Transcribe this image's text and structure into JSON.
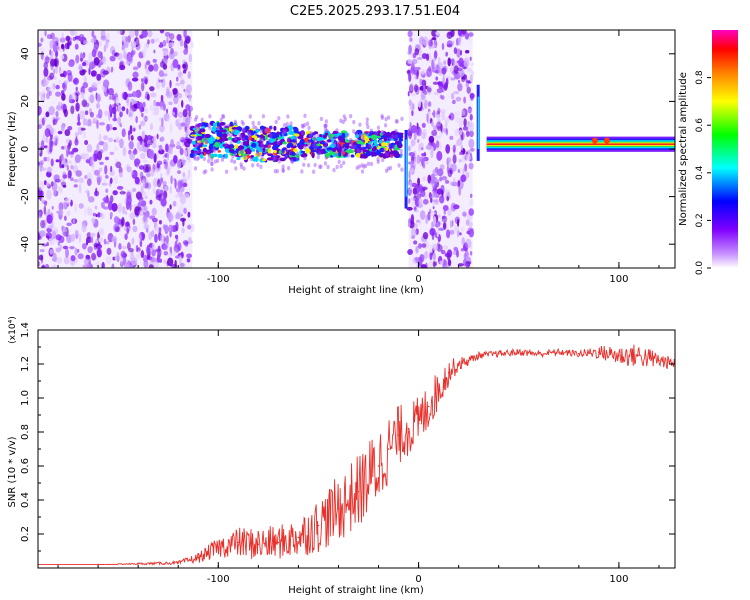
{
  "title": "C2E5.2025.293.17.51.E04",
  "chart_data": [
    {
      "type": "heatmap",
      "xlabel": "Height of straight line (km)",
      "ylabel": "Frequency (Hz)",
      "xlim": [
        -190,
        128
      ],
      "ylim": [
        -50,
        50
      ],
      "xticks": [
        -100,
        0,
        100
      ],
      "yticks": [
        -40,
        -20,
        0,
        20,
        40
      ],
      "xtick_labels": [
        "-100",
        "0",
        "100"
      ],
      "ytick_labels": [
        "-40",
        "-20",
        "0",
        "20",
        "40"
      ],
      "colorbar": {
        "label": "Normalized spectral amplitude",
        "range": [
          0.0,
          1.0
        ],
        "ticks": [
          0.0,
          0.2,
          0.4,
          0.6,
          0.8
        ],
        "tick_labels": [
          "0.0",
          "0.2",
          "0.4",
          "0.6",
          "0.8"
        ],
        "colors": [
          "#ffffff",
          "#a020f0",
          "#0000ff",
          "#00ffff",
          "#00ff00",
          "#ffff00",
          "#ff8000",
          "#ff0000",
          "#ff00ff"
        ]
      },
      "regions": [
        {
          "name": "noise",
          "x": [
            -190,
            -113
          ],
          "level": "low"
        },
        {
          "name": "carrier-noisy",
          "x": [
            -113,
            -8
          ],
          "frequency_center": 2,
          "level": "medium-high"
        },
        {
          "name": "noise",
          "x": [
            -5,
            27
          ],
          "level": "low"
        },
        {
          "name": "carrier-clean",
          "x": [
            34,
            128
          ],
          "frequency_center": 2,
          "level": "max"
        }
      ]
    },
    {
      "type": "line",
      "xlabel": "Height of straight line (km)",
      "ylabel": "SNR (10 * v/v)",
      "y_multiplier": "(x10⁴)",
      "xlim": [
        -190,
        128
      ],
      "ylim": [
        0,
        1.4
      ],
      "xticks": [
        -100,
        0,
        100
      ],
      "yticks": [
        0.2,
        0.4,
        0.6,
        0.8,
        1.0,
        1.2,
        1.4
      ],
      "xtick_labels": [
        "-100",
        "0",
        "100"
      ],
      "ytick_labels": [
        "0.2",
        "0.4",
        "0.6",
        "0.8",
        "1.0",
        "1.2",
        "1.4"
      ],
      "color": "#e8302b",
      "series": [
        {
          "name": "SNR",
          "x": [
            -190,
            -160,
            -140,
            -120,
            -110,
            -100,
            -90,
            -80,
            -70,
            -60,
            -50,
            -40,
            -30,
            -20,
            -15,
            -10,
            -5,
            0,
            5,
            10,
            15,
            20,
            25,
            30,
            40,
            50,
            60,
            70,
            80,
            90,
            100,
            110,
            120,
            128
          ],
          "y": [
            0.02,
            0.02,
            0.025,
            0.03,
            0.06,
            0.12,
            0.15,
            0.14,
            0.15,
            0.18,
            0.25,
            0.35,
            0.45,
            0.6,
            0.7,
            0.78,
            0.82,
            0.85,
            0.95,
            1.05,
            1.15,
            1.2,
            1.22,
            1.25,
            1.26,
            1.27,
            1.26,
            1.27,
            1.26,
            1.27,
            1.25,
            1.25,
            1.22,
            1.2
          ],
          "noise": [
            0.0,
            0.0,
            0.005,
            0.01,
            0.03,
            0.06,
            0.09,
            0.1,
            0.1,
            0.12,
            0.16,
            0.2,
            0.22,
            0.24,
            0.2,
            0.18,
            0.16,
            0.16,
            0.14,
            0.12,
            0.08,
            0.04,
            0.03,
            0.02,
            0.02,
            0.02,
            0.02,
            0.02,
            0.02,
            0.04,
            0.06,
            0.07,
            0.05,
            0.03
          ]
        }
      ]
    }
  ]
}
